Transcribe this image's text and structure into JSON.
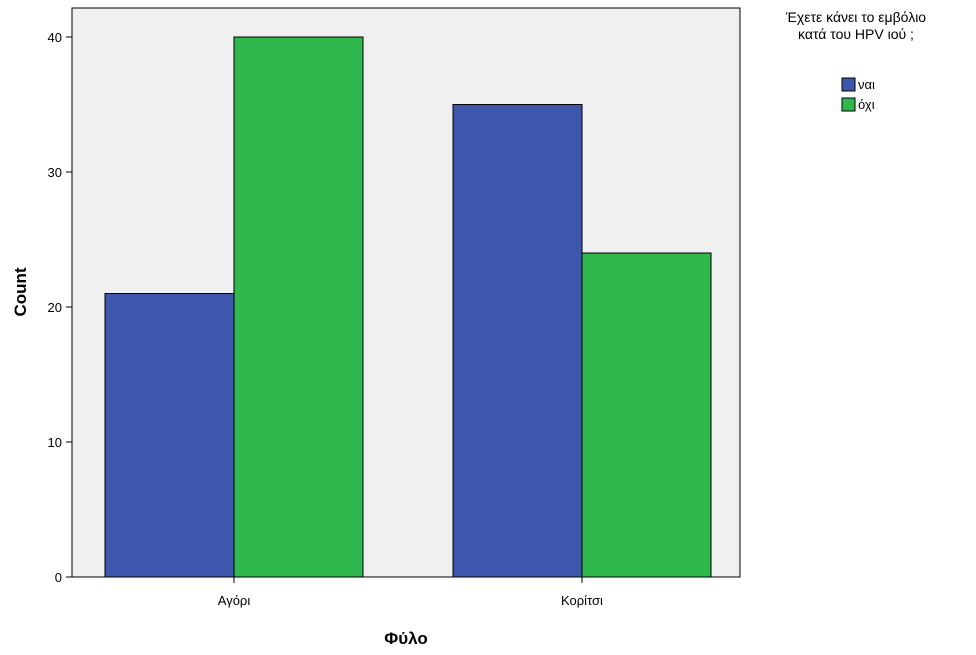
{
  "chart_data": {
    "type": "bar",
    "categories": [
      "Αγόρι",
      "Κορίτσι"
    ],
    "series": [
      {
        "name": "ναι",
        "values": [
          21,
          35
        ],
        "color": "#3d57ad"
      },
      {
        "name": "όχι",
        "values": [
          40,
          24
        ],
        "color": "#2fb84b"
      }
    ],
    "xlabel": "Φύλο",
    "ylabel": "Count",
    "ylim": [
      0,
      40
    ],
    "yticks": [
      0,
      10,
      20,
      30,
      40
    ],
    "legend": {
      "title_lines": [
        "Έχετε κάνει το εμβόλιο",
        "κατά του HPV ιού ;"
      ],
      "position": "top-right"
    },
    "plot_background": "#f0f0f0",
    "grid": false
  }
}
